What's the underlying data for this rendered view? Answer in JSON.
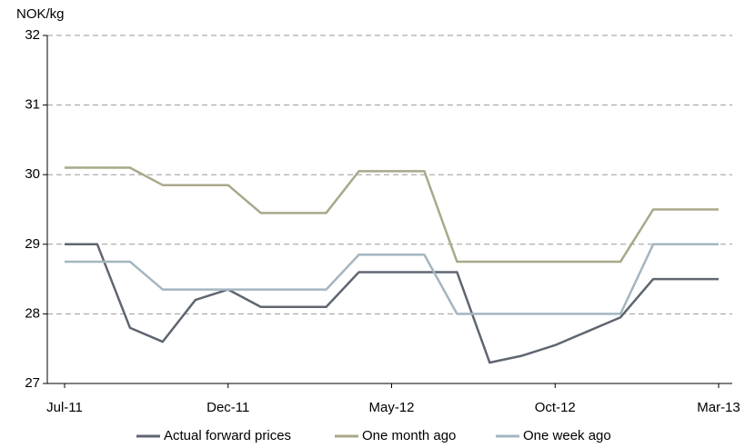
{
  "chart_data": {
    "type": "line",
    "y_label": "NOK/kg",
    "categories": [
      "Jul-11",
      null,
      null,
      null,
      null,
      "Dec-11",
      null,
      null,
      null,
      null,
      "May-12",
      null,
      null,
      null,
      null,
      "Oct-12",
      null,
      null,
      null,
      null,
      "Mar-13"
    ],
    "series": [
      {
        "name": "Actual forward prices",
        "color": "#5f6670",
        "values": [
          29.0,
          29.0,
          27.8,
          27.6,
          28.2,
          28.35,
          28.1,
          28.1,
          28.1,
          28.6,
          28.6,
          28.6,
          28.6,
          27.3,
          27.4,
          27.55,
          27.75,
          27.95,
          28.5,
          28.5,
          28.5
        ]
      },
      {
        "name": "One month ago",
        "color": "#a9a88b",
        "values": [
          30.1,
          30.1,
          30.1,
          29.85,
          29.85,
          29.85,
          29.45,
          29.45,
          29.45,
          30.05,
          30.05,
          30.05,
          28.75,
          28.75,
          28.75,
          28.75,
          28.75,
          28.75,
          29.5,
          29.5,
          29.5
        ]
      },
      {
        "name": "One week ago",
        "color": "#a4b6c0",
        "values": [
          28.75,
          28.75,
          28.75,
          28.35,
          28.35,
          28.35,
          28.35,
          28.35,
          28.35,
          28.85,
          28.85,
          28.85,
          28.0,
          28.0,
          28.0,
          28.0,
          28.0,
          28.0,
          29.0,
          29.0,
          29.0
        ]
      }
    ],
    "ylim": [
      27,
      32
    ],
    "yticks": [
      27,
      28,
      29,
      30,
      31,
      32
    ],
    "grid": true,
    "legend": "bottom"
  }
}
